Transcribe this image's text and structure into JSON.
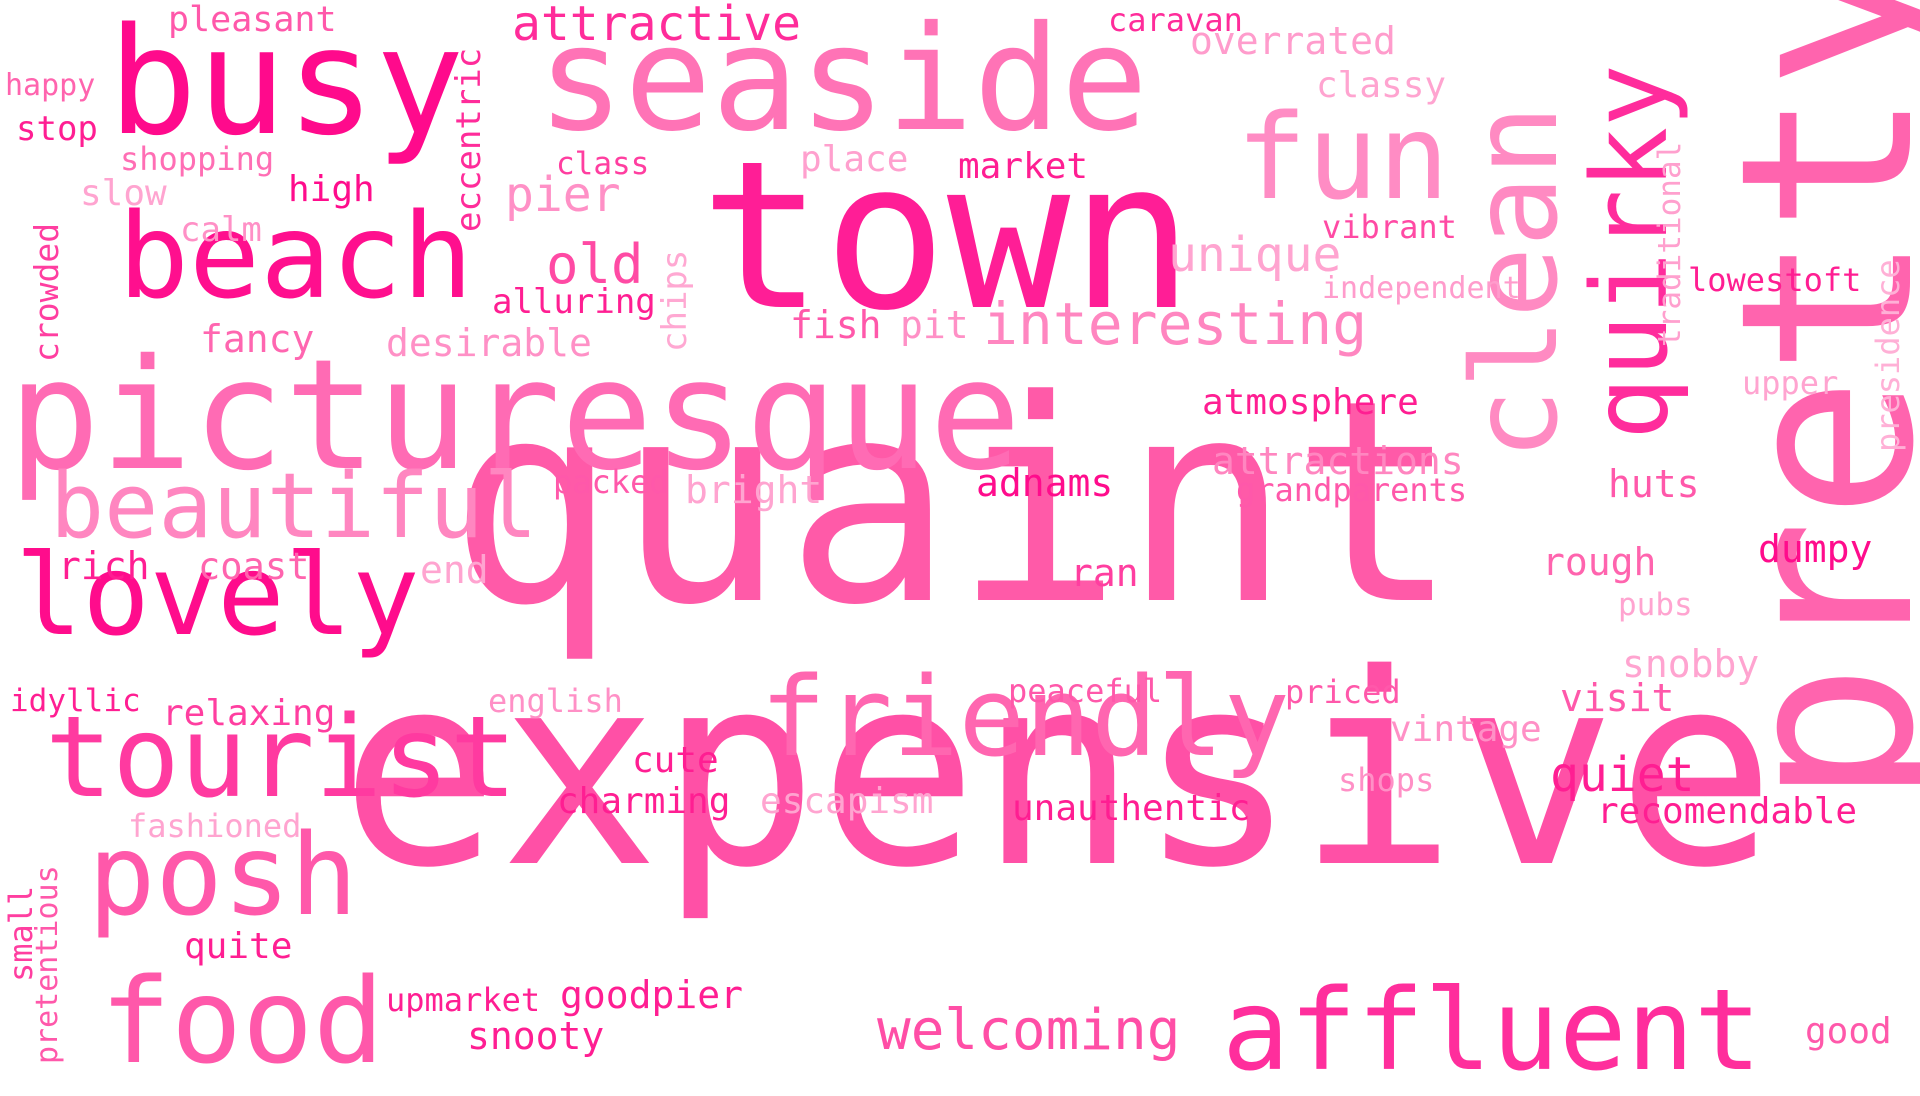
{
  "words": {
    "quaint": {
      "text": "quaint",
      "color": "#ff5aa8"
    },
    "expensive": {
      "text": "expensive",
      "color": "#ff50a6"
    },
    "pretty": {
      "text": "pretty",
      "color": "#ff64ae"
    },
    "picturesque": {
      "text": "picturesque",
      "color": "#ff6bb4"
    },
    "town": {
      "text": "town",
      "color": "#ff1e96"
    },
    "seaside": {
      "text": "seaside",
      "color": "#ff73b6"
    },
    "busy": {
      "text": "busy",
      "color": "#ff0a8c"
    },
    "beach": {
      "text": "beach",
      "color": "#ff0f8e"
    },
    "fun": {
      "text": "fun",
      "color": "#ff8cc4"
    },
    "clean": {
      "text": "clean",
      "color": "#ff8ac2"
    },
    "quirky": {
      "text": "quirky",
      "color": "#ff2c9c"
    },
    "friendly": {
      "text": "friendly",
      "color": "#ff66b0"
    },
    "tourist": {
      "text": "tourist",
      "color": "#ff3aa0"
    },
    "lovely": {
      "text": "lovely",
      "color": "#ff0c8c"
    },
    "beautiful": {
      "text": "beautiful",
      "color": "#ff86c0"
    },
    "posh": {
      "text": "posh",
      "color": "#ff58aa"
    },
    "food": {
      "text": "food",
      "color": "#ff58aa"
    },
    "affluent": {
      "text": "affluent",
      "color": "#ff2e9c"
    },
    "interesting": {
      "text": "interesting",
      "color": "#ff86c0"
    },
    "welcoming": {
      "text": "welcoming",
      "color": "#ff4ea6"
    },
    "attractive": {
      "text": "attractive",
      "color": "#ff2c9a"
    },
    "pleasant": {
      "text": "pleasant",
      "color": "#ff58aa"
    },
    "eccentric": {
      "text": "eccentric",
      "color": "#ff2c9a"
    },
    "caravan": {
      "text": "caravan",
      "color": "#ff2c9a"
    },
    "overrated": {
      "text": "overrated",
      "color": "#ff9ccc"
    },
    "classy": {
      "text": "classy",
      "color": "#ffa4d0"
    },
    "happy": {
      "text": "happy",
      "color": "#ff64ae"
    },
    "stop": {
      "text": "stop",
      "color": "#ff1e92"
    },
    "shopping": {
      "text": "shopping",
      "color": "#ff6eb4"
    },
    "class": {
      "text": "class",
      "color": "#ff3ea0"
    },
    "place": {
      "text": "place",
      "color": "#ffa0ce"
    },
    "market": {
      "text": "market",
      "color": "#ff1e92"
    },
    "slow": {
      "text": "slow",
      "color": "#ffa4d0"
    },
    "high": {
      "text": "high",
      "color": "#ff0c8c"
    },
    "pier": {
      "text": "pier",
      "color": "#ff90c6"
    },
    "traditional": {
      "text": "traditional",
      "color": "#ffa0ce"
    },
    "vibrant": {
      "text": "vibrant",
      "color": "#ff4aa4"
    },
    "crowded": {
      "text": "crowded",
      "color": "#ff3ea0"
    },
    "calm": {
      "text": "calm",
      "color": "#ff90c6"
    },
    "old": {
      "text": "old",
      "color": "#ff4aa4"
    },
    "chips": {
      "text": "chips",
      "color": "#ffa8d2"
    },
    "unique": {
      "text": "unique",
      "color": "#ffa4d0"
    },
    "independent": {
      "text": "independent",
      "color": "#ff9ccc"
    },
    "lowestoft": {
      "text": "lowestoft",
      "color": "#ff1e92"
    },
    "presidence": {
      "text": "presidence",
      "color": "#ffb0d6"
    },
    "alluring": {
      "text": "alluring",
      "color": "#ff1e92"
    },
    "fancy": {
      "text": "fancy",
      "color": "#ff66b0"
    },
    "desirable": {
      "text": "desirable",
      "color": "#ff90c6"
    },
    "fish": {
      "text": "fish",
      "color": "#ff58aa"
    },
    "pit": {
      "text": "pit",
      "color": "#ff90c6"
    },
    "upper": {
      "text": "upper",
      "color": "#ffa4d0"
    },
    "atmosphere": {
      "text": "atmosphere",
      "color": "#ff1e92"
    },
    "attractions": {
      "text": "attractions",
      "color": "#ff86c0"
    },
    "packed": {
      "text": "packed",
      "color": "#ff58aa"
    },
    "bright": {
      "text": "bright",
      "color": "#ffa4d0"
    },
    "adnams": {
      "text": "adnams",
      "color": "#ff0c8c"
    },
    "grandparents": {
      "text": "grandparents",
      "color": "#ff58aa"
    },
    "huts": {
      "text": "huts",
      "color": "#ff58aa"
    },
    "rich": {
      "text": "rich",
      "color": "#ff1e92"
    },
    "coast": {
      "text": "coast",
      "color": "#ff64ae"
    },
    "end": {
      "text": "end",
      "color": "#ffa4d0"
    },
    "ran": {
      "text": "ran",
      "color": "#ff3ea0"
    },
    "rough": {
      "text": "rough",
      "color": "#ff64ae"
    },
    "dumpy": {
      "text": "dumpy",
      "color": "#ff0c8c"
    },
    "pubs": {
      "text": "pubs",
      "color": "#ffa4d0"
    },
    "snobby": {
      "text": "snobby",
      "color": "#ffa4d0"
    },
    "idyllic": {
      "text": "idyllic",
      "color": "#ff1e92"
    },
    "relaxing": {
      "text": "relaxing",
      "color": "#ff3ea0"
    },
    "english": {
      "text": "english",
      "color": "#ff90c6"
    },
    "peaceful": {
      "text": "peaceful",
      "color": "#ff58aa"
    },
    "priced": {
      "text": "priced",
      "color": "#ff58aa"
    },
    "visit": {
      "text": "visit",
      "color": "#ff58aa"
    },
    "vintage": {
      "text": "vintage",
      "color": "#ff90c6"
    },
    "cute": {
      "text": "cute",
      "color": "#ff1e92"
    },
    "quiet": {
      "text": "quiet",
      "color": "#ff1e92"
    },
    "shops": {
      "text": "shops",
      "color": "#ff90c6"
    },
    "charming": {
      "text": "charming",
      "color": "#ff1e92"
    },
    "escapism": {
      "text": "escapism",
      "color": "#ffa4d0"
    },
    "unauthentic": {
      "text": "unauthentic",
      "color": "#ff1e92"
    },
    "recomendable": {
      "text": "recomendable",
      "color": "#ff1e92"
    },
    "fashioned": {
      "text": "fashioned",
      "color": "#ffa4d0"
    },
    "small": {
      "text": "small",
      "color": "#ff3ea0"
    },
    "pretentious": {
      "text": "pretentious",
      "color": "#ff58aa"
    },
    "quite": {
      "text": "quite",
      "color": "#ff1e92"
    },
    "upmarket": {
      "text": "upmarket",
      "color": "#ff1e92"
    },
    "goodpier": {
      "text": "goodpier",
      "color": "#ff1e92"
    },
    "snooty": {
      "text": "snooty",
      "color": "#ff1e92"
    },
    "good": {
      "text": "good",
      "color": "#ff58aa"
    }
  }
}
